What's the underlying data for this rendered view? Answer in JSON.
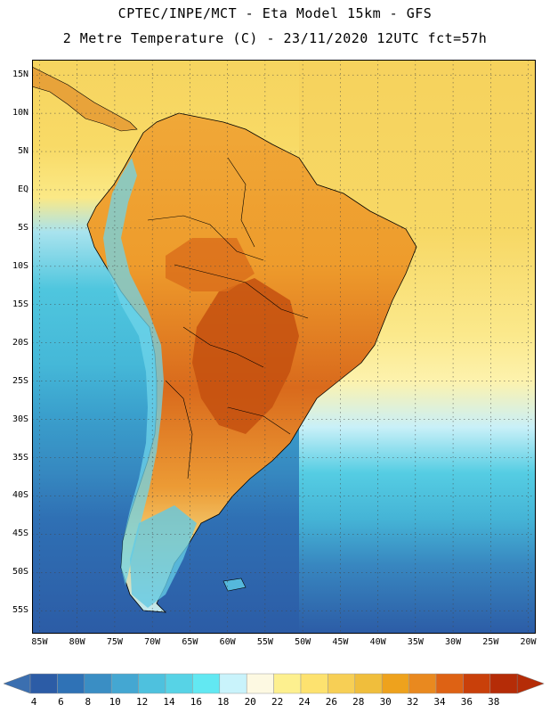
{
  "header": {
    "line1": "CPTEC/INPE/MCT -  Eta Model 15km - GFS",
    "line2": "2 Metre Temperature (C) - 23/11/2020 12UTC fct=57h"
  },
  "map": {
    "lat_labels": [
      "15N",
      "10N",
      "5N",
      "EQ",
      "5S",
      "10S",
      "15S",
      "20S",
      "25S",
      "30S",
      "35S",
      "40S",
      "45S",
      "50S",
      "55S"
    ],
    "lon_labels": [
      "85W",
      "80W",
      "75W",
      "70W",
      "65W",
      "60W",
      "55W",
      "50W",
      "45W",
      "40W",
      "35W",
      "30W",
      "25W",
      "20W"
    ],
    "lat_values": [
      15,
      10,
      5,
      0,
      -5,
      -10,
      -15,
      -20,
      -25,
      -30,
      -35,
      -40,
      -45,
      -50,
      -55
    ],
    "lon_values": [
      -85,
      -80,
      -75,
      -70,
      -65,
      -60,
      -55,
      -50,
      -45,
      -40,
      -35,
      -30,
      -25,
      -20
    ],
    "extent": {
      "lon_min": -86,
      "lon_max": -19,
      "lat_min": -58,
      "lat_max": 17
    }
  },
  "colorbar": {
    "labels": [
      "4",
      "6",
      "8",
      "10",
      "12",
      "14",
      "16",
      "18",
      "20",
      "22",
      "24",
      "26",
      "28",
      "30",
      "32",
      "34",
      "36",
      "38"
    ],
    "colors": [
      "#2c5ca6",
      "#2f72b6",
      "#3a8ec4",
      "#44a7d2",
      "#4ec1de",
      "#57d3e6",
      "#62e8f2",
      "#c9f3fb",
      "#fdf9e2",
      "#fdf08f",
      "#fde26f",
      "#f7cf55",
      "#f0be3c",
      "#eea21d",
      "#e9891f",
      "#de6214",
      "#c9400a",
      "#b52c07"
    ],
    "under_color": "#3b6fb0",
    "over_color": "#b52c07"
  }
}
